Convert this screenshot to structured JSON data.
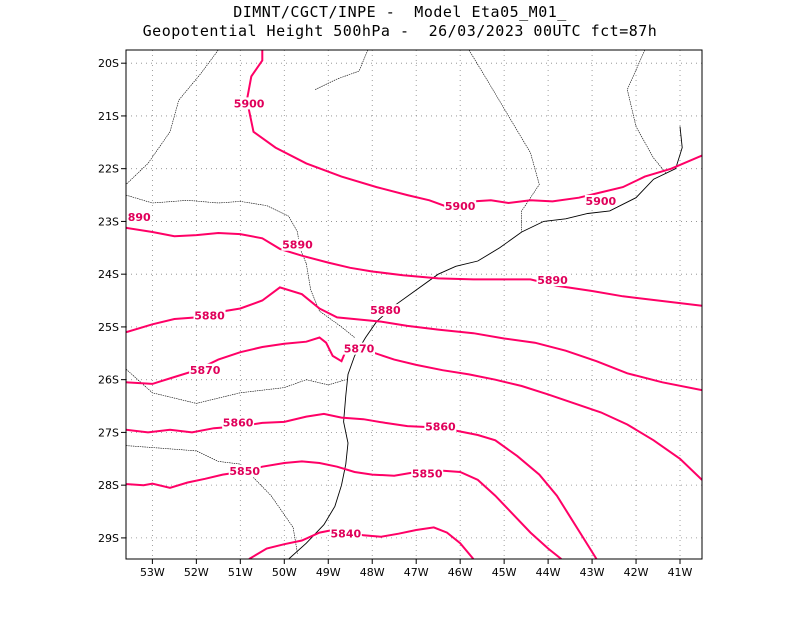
{
  "title_line1": "DIMNT/CGCT/INPE -  Model Eta05_M01_",
  "title_line2": "Geopotential Height 500hPa -  26/03/2023 00UTC fct=87h",
  "colors": {
    "contour": "#ff0066",
    "coast": "#000000",
    "grid": "#888888"
  },
  "lat_ticks": [
    {
      "lat": -20,
      "label": "20S"
    },
    {
      "lat": -21,
      "label": "21S"
    },
    {
      "lat": -22,
      "label": "22S"
    },
    {
      "lat": -23,
      "label": "23S"
    },
    {
      "lat": -24,
      "label": "24S"
    },
    {
      "lat": -25,
      "label": "25S"
    },
    {
      "lat": -26,
      "label": "26S"
    },
    {
      "lat": -27,
      "label": "27S"
    },
    {
      "lat": -28,
      "label": "28S"
    },
    {
      "lat": -29,
      "label": "29S"
    }
  ],
  "lon_ticks": [
    {
      "lon": -53,
      "label": "53W"
    },
    {
      "lon": -52,
      "label": "52W"
    },
    {
      "lon": -51,
      "label": "51W"
    },
    {
      "lon": -50,
      "label": "50W"
    },
    {
      "lon": -49,
      "label": "49W"
    },
    {
      "lon": -48,
      "label": "48W"
    },
    {
      "lon": -47,
      "label": "47W"
    },
    {
      "lon": -46,
      "label": "46W"
    },
    {
      "lon": -45,
      "label": "45W"
    },
    {
      "lon": -44,
      "label": "44W"
    },
    {
      "lon": -43,
      "label": "43W"
    },
    {
      "lon": -42,
      "label": "42W"
    },
    {
      "lon": -41,
      "label": "41W"
    }
  ],
  "extent": {
    "lon_min": -53.6,
    "lon_max": -40.5,
    "lat_min": -29.4,
    "lat_max": -19.75
  },
  "contours": [
    {
      "value": 5900,
      "points": [
        [
          -50.5,
          -19.75
        ],
        [
          -50.5,
          -19.95
        ],
        [
          -50.75,
          -20.25
        ],
        [
          -50.85,
          -20.7
        ],
        [
          -50.7,
          -21.3
        ],
        [
          -50.2,
          -21.6
        ],
        [
          -49.5,
          -21.9
        ],
        [
          -48.7,
          -22.15
        ],
        [
          -47.9,
          -22.35
        ],
        [
          -47.2,
          -22.5
        ],
        [
          -46.7,
          -22.6
        ],
        [
          -46.3,
          -22.72
        ],
        [
          -46.0,
          -22.68
        ],
        [
          -45.7,
          -22.62
        ],
        [
          -45.3,
          -22.6
        ],
        [
          -44.9,
          -22.65
        ],
        [
          -44.4,
          -22.6
        ],
        [
          -43.9,
          -22.62
        ],
        [
          -43.3,
          -22.55
        ],
        [
          -42.8,
          -22.45
        ],
        [
          -42.3,
          -22.35
        ],
        [
          -41.8,
          -22.15
        ],
        [
          -41.2,
          -22.0
        ],
        [
          -40.5,
          -21.75
        ]
      ],
      "labels": [
        {
          "lon": -50.8,
          "lat": -20.8,
          "text": "5900"
        },
        {
          "lon": -46.0,
          "lat": -22.75,
          "text": "5900"
        },
        {
          "lon": -42.8,
          "lat": -22.65,
          "text": "5900"
        }
      ]
    },
    {
      "value": 5890,
      "points": [
        [
          -53.6,
          -23.12
        ],
        [
          -53.0,
          -23.2
        ],
        [
          -52.5,
          -23.28
        ],
        [
          -52.0,
          -23.26
        ],
        [
          -51.5,
          -23.22
        ],
        [
          -51.0,
          -23.24
        ],
        [
          -50.5,
          -23.32
        ],
        [
          -50.1,
          -23.52
        ],
        [
          -49.6,
          -23.65
        ],
        [
          -49.0,
          -23.78
        ],
        [
          -48.5,
          -23.88
        ],
        [
          -48.0,
          -23.95
        ],
        [
          -47.3,
          -24.02
        ],
        [
          -46.5,
          -24.08
        ],
        [
          -45.7,
          -24.1
        ],
        [
          -45.0,
          -24.1
        ],
        [
          -44.4,
          -24.1
        ],
        [
          -43.8,
          -24.22
        ],
        [
          -43.0,
          -24.32
        ],
        [
          -42.3,
          -24.42
        ],
        [
          -41.5,
          -24.5
        ],
        [
          -40.5,
          -24.6
        ]
      ],
      "labels": [
        {
          "lon": -53.3,
          "lat": -22.95,
          "text": "890"
        },
        {
          "lon": -49.7,
          "lat": -23.48,
          "text": "5890"
        },
        {
          "lon": -43.9,
          "lat": -24.15,
          "text": "5890"
        }
      ]
    },
    {
      "value": 5880,
      "points": [
        [
          -53.6,
          -25.1
        ],
        [
          -53.0,
          -24.95
        ],
        [
          -52.5,
          -24.85
        ],
        [
          -52.0,
          -24.82
        ],
        [
          -51.5,
          -24.72
        ],
        [
          -51.0,
          -24.65
        ],
        [
          -50.5,
          -24.5
        ],
        [
          -50.1,
          -24.25
        ],
        [
          -49.6,
          -24.38
        ],
        [
          -49.2,
          -24.65
        ],
        [
          -48.8,
          -24.82
        ],
        [
          -48.3,
          -24.86
        ],
        [
          -47.8,
          -24.9
        ],
        [
          -47.2,
          -24.98
        ],
        [
          -46.5,
          -25.05
        ],
        [
          -45.7,
          -25.12
        ],
        [
          -45.0,
          -25.22
        ],
        [
          -44.3,
          -25.3
        ],
        [
          -43.6,
          -25.45
        ],
        [
          -42.9,
          -25.65
        ],
        [
          -42.2,
          -25.88
        ],
        [
          -41.4,
          -26.05
        ],
        [
          -40.5,
          -26.2
        ]
      ],
      "labels": [
        {
          "lon": -51.7,
          "lat": -24.82,
          "text": "5880"
        },
        {
          "lon": -47.7,
          "lat": -24.72,
          "text": "5880"
        }
      ]
    },
    {
      "value": 5870,
      "points": [
        [
          -53.6,
          -26.05
        ],
        [
          -53.0,
          -26.08
        ],
        [
          -52.5,
          -25.95
        ],
        [
          -52.0,
          -25.82
        ],
        [
          -51.5,
          -25.62
        ],
        [
          -51.0,
          -25.48
        ],
        [
          -50.5,
          -25.38
        ],
        [
          -50.0,
          -25.32
        ],
        [
          -49.5,
          -25.28
        ],
        [
          -49.2,
          -25.2
        ],
        [
          -49.05,
          -25.3
        ],
        [
          -48.9,
          -25.55
        ],
        [
          -48.7,
          -25.65
        ],
        [
          -48.6,
          -25.45
        ],
        [
          -48.4,
          -25.38
        ],
        [
          -48.0,
          -25.48
        ],
        [
          -47.5,
          -25.62
        ],
        [
          -47.0,
          -25.72
        ],
        [
          -46.4,
          -25.82
        ],
        [
          -45.8,
          -25.9
        ],
        [
          -45.2,
          -26.0
        ],
        [
          -44.6,
          -26.12
        ],
        [
          -44.0,
          -26.28
        ],
        [
          -43.4,
          -26.45
        ],
        [
          -42.8,
          -26.62
        ],
        [
          -42.2,
          -26.85
        ],
        [
          -41.6,
          -27.15
        ],
        [
          -41.0,
          -27.5
        ],
        [
          -40.5,
          -27.9
        ]
      ],
      "labels": [
        {
          "lon": -51.8,
          "lat": -25.85,
          "text": "5870"
        },
        {
          "lon": -48.3,
          "lat": -25.45,
          "text": "5870"
        }
      ]
    },
    {
      "value": 5860,
      "points": [
        [
          -53.6,
          -26.95
        ],
        [
          -53.1,
          -27.0
        ],
        [
          -52.6,
          -26.95
        ],
        [
          -52.1,
          -27.0
        ],
        [
          -51.6,
          -26.92
        ],
        [
          -51.0,
          -26.88
        ],
        [
          -50.5,
          -26.82
        ],
        [
          -50.0,
          -26.8
        ],
        [
          -49.5,
          -26.7
        ],
        [
          -49.1,
          -26.65
        ],
        [
          -48.7,
          -26.72
        ],
        [
          -48.2,
          -26.75
        ],
        [
          -47.7,
          -26.82
        ],
        [
          -47.2,
          -26.88
        ],
        [
          -46.7,
          -26.9
        ],
        [
          -46.2,
          -26.95
        ],
        [
          -45.6,
          -27.05
        ],
        [
          -45.2,
          -27.15
        ],
        [
          -44.7,
          -27.45
        ],
        [
          -44.2,
          -27.8
        ],
        [
          -43.8,
          -28.2
        ],
        [
          -43.5,
          -28.6
        ],
        [
          -43.2,
          -29.0
        ],
        [
          -42.9,
          -29.4
        ]
      ],
      "labels": [
        {
          "lon": -51.05,
          "lat": -26.85,
          "text": "5860"
        },
        {
          "lon": -46.45,
          "lat": -26.93,
          "text": "5860"
        }
      ]
    },
    {
      "value": 5850,
      "points": [
        [
          -53.6,
          -27.98
        ],
        [
          -53.2,
          -28.0
        ],
        [
          -53.0,
          -27.97
        ],
        [
          -52.6,
          -28.05
        ],
        [
          -52.2,
          -27.95
        ],
        [
          -51.8,
          -27.88
        ],
        [
          -51.4,
          -27.8
        ],
        [
          -51.0,
          -27.75
        ],
        [
          -50.5,
          -27.65
        ],
        [
          -50.0,
          -27.58
        ],
        [
          -49.6,
          -27.55
        ],
        [
          -49.2,
          -27.58
        ],
        [
          -48.8,
          -27.65
        ],
        [
          -48.4,
          -27.75
        ],
        [
          -48.0,
          -27.8
        ],
        [
          -47.5,
          -27.82
        ],
        [
          -47.0,
          -27.75
        ],
        [
          -46.5,
          -27.72
        ],
        [
          -46.0,
          -27.75
        ],
        [
          -45.6,
          -27.9
        ],
        [
          -45.2,
          -28.2
        ],
        [
          -44.8,
          -28.55
        ],
        [
          -44.4,
          -28.9
        ],
        [
          -44.0,
          -29.2
        ],
        [
          -43.7,
          -29.4
        ]
      ],
      "labels": [
        {
          "lon": -50.9,
          "lat": -27.77,
          "text": "5850"
        },
        {
          "lon": -46.75,
          "lat": -27.82,
          "text": "5850"
        }
      ]
    },
    {
      "value": 5840,
      "points": [
        [
          -50.8,
          -29.4
        ],
        [
          -50.4,
          -29.2
        ],
        [
          -50.0,
          -29.12
        ],
        [
          -49.6,
          -29.05
        ],
        [
          -49.2,
          -28.9
        ],
        [
          -48.9,
          -28.85
        ],
        [
          -48.6,
          -28.88
        ],
        [
          -48.2,
          -28.95
        ],
        [
          -47.8,
          -28.98
        ],
        [
          -47.4,
          -28.92
        ],
        [
          -47.0,
          -28.85
        ],
        [
          -46.6,
          -28.8
        ],
        [
          -46.3,
          -28.9
        ],
        [
          -46.0,
          -29.1
        ],
        [
          -45.7,
          -29.4
        ]
      ],
      "labels": [
        {
          "lon": -48.6,
          "lat": -28.95,
          "text": "5840"
        }
      ]
    }
  ],
  "coastline": [
    [
      -41.0,
      -21.2
    ],
    [
      -40.95,
      -21.6
    ],
    [
      -41.1,
      -22.0
    ],
    [
      -41.6,
      -22.2
    ],
    [
      -42.0,
      -22.55
    ],
    [
      -42.6,
      -22.8
    ],
    [
      -43.1,
      -22.85
    ],
    [
      -43.6,
      -22.95
    ],
    [
      -44.1,
      -23.0
    ],
    [
      -44.6,
      -23.2
    ],
    [
      -45.1,
      -23.5
    ],
    [
      -45.6,
      -23.75
    ],
    [
      -46.1,
      -23.85
    ],
    [
      -46.5,
      -24.0
    ],
    [
      -47.0,
      -24.3
    ],
    [
      -47.5,
      -24.6
    ],
    [
      -47.9,
      -24.9
    ],
    [
      -48.15,
      -25.2
    ],
    [
      -48.4,
      -25.55
    ],
    [
      -48.55,
      -25.9
    ],
    [
      -48.6,
      -26.3
    ],
    [
      -48.65,
      -26.8
    ],
    [
      -48.55,
      -27.2
    ],
    [
      -48.6,
      -27.6
    ],
    [
      -48.7,
      -28.0
    ],
    [
      -48.85,
      -28.4
    ],
    [
      -49.1,
      -28.75
    ],
    [
      -49.5,
      -29.1
    ],
    [
      -49.9,
      -29.4
    ]
  ],
  "borders": [
    [
      [
        -51.5,
        -19.75
      ],
      [
        -51.9,
        -20.2
      ],
      [
        -52.4,
        -20.7
      ],
      [
        -52.6,
        -21.3
      ],
      [
        -53.1,
        -21.9
      ],
      [
        -53.6,
        -22.3
      ]
    ],
    [
      [
        -53.6,
        -22.5
      ],
      [
        -53.0,
        -22.65
      ],
      [
        -52.2,
        -22.6
      ],
      [
        -51.5,
        -22.65
      ],
      [
        -51.0,
        -22.62
      ],
      [
        -50.4,
        -22.7
      ],
      [
        -49.9,
        -22.9
      ],
      [
        -49.7,
        -23.2
      ],
      [
        -49.65,
        -23.5
      ],
      [
        -49.5,
        -23.8
      ]
    ],
    [
      [
        -49.5,
        -23.8
      ],
      [
        -49.4,
        -24.3
      ],
      [
        -49.2,
        -24.7
      ],
      [
        -48.7,
        -25.0
      ],
      [
        -48.4,
        -25.2
      ]
    ],
    [
      [
        -53.6,
        -25.8
      ],
      [
        -53.0,
        -26.25
      ],
      [
        -52.0,
        -26.45
      ],
      [
        -51.0,
        -26.25
      ],
      [
        -50.0,
        -26.15
      ],
      [
        -49.5,
        -26.0
      ],
      [
        -49.0,
        -26.1
      ],
      [
        -48.6,
        -26.0
      ]
    ],
    [
      [
        -53.6,
        -27.25
      ],
      [
        -52.8,
        -27.3
      ],
      [
        -52.0,
        -27.35
      ],
      [
        -51.5,
        -27.55
      ],
      [
        -51.0,
        -27.6
      ],
      [
        -50.3,
        -28.2
      ],
      [
        -49.8,
        -28.8
      ],
      [
        -49.7,
        -29.3
      ]
    ],
    [
      [
        -45.8,
        -19.75
      ],
      [
        -45.4,
        -20.3
      ],
      [
        -44.9,
        -21.0
      ],
      [
        -44.4,
        -21.7
      ],
      [
        -44.2,
        -22.3
      ],
      [
        -44.6,
        -22.8
      ],
      [
        -44.6,
        -23.2
      ]
    ],
    [
      [
        -41.8,
        -19.75
      ],
      [
        -42.2,
        -20.5
      ],
      [
        -42.0,
        -21.2
      ],
      [
        -41.6,
        -21.8
      ],
      [
        -41.3,
        -22.1
      ]
    ],
    [
      [
        -48.1,
        -19.75
      ],
      [
        -48.3,
        -20.15
      ],
      [
        -48.8,
        -20.3
      ],
      [
        -49.3,
        -20.5
      ]
    ]
  ]
}
